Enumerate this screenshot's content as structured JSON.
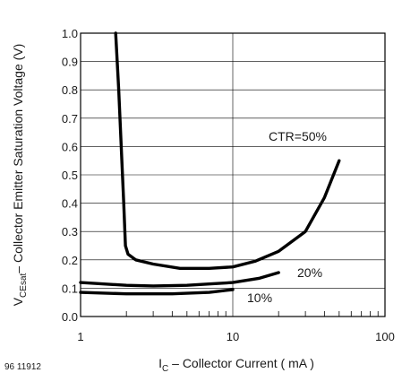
{
  "figure_id": "96 11912",
  "chart_data": {
    "type": "line",
    "xscale": "log",
    "xlim": [
      1,
      100
    ],
    "ylim": [
      0,
      1.0
    ],
    "x_ticks": [
      "1",
      "10",
      "100"
    ],
    "y_ticks": [
      "0.0",
      "0.1",
      "0.2",
      "0.3",
      "0.4",
      "0.5",
      "0.6",
      "0.7",
      "0.8",
      "0.9",
      "1.0"
    ],
    "xlabel": {
      "main": "I",
      "sub": "C",
      "rest": " – Collector Current ( mA )"
    },
    "ylabel": {
      "main": "V",
      "sub": "CEsat",
      "rest": "– Collector Emitter Saturation Voltage (V)"
    },
    "grid": true,
    "series": [
      {
        "name": "CTR=50%",
        "x": [
          1.7,
          1.78,
          1.85,
          1.92,
          1.97,
          2.05,
          2.3,
          3.0,
          4.5,
          7,
          10,
          14,
          20,
          30,
          40,
          50
        ],
        "y": [
          1.0,
          0.8,
          0.6,
          0.4,
          0.25,
          0.22,
          0.2,
          0.185,
          0.17,
          0.17,
          0.175,
          0.195,
          0.23,
          0.3,
          0.42,
          0.55
        ]
      },
      {
        "name": "20%",
        "x": [
          1,
          2,
          3,
          5,
          7,
          10,
          15,
          20
        ],
        "y": [
          0.12,
          0.11,
          0.108,
          0.11,
          0.115,
          0.12,
          0.135,
          0.155
        ]
      },
      {
        "name": "10%",
        "x": [
          1,
          2,
          4,
          7,
          10
        ],
        "y": [
          0.085,
          0.08,
          0.08,
          0.085,
          0.095
        ]
      }
    ]
  }
}
